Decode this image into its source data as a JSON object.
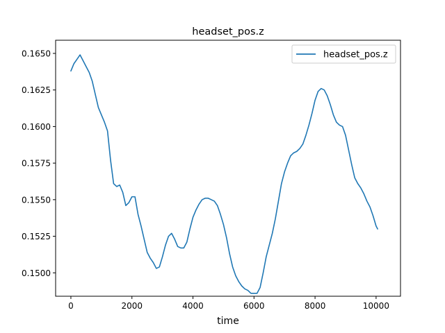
{
  "chart_data": {
    "type": "line",
    "title": "headset_pos.z",
    "xlabel": "time",
    "ylabel": "",
    "xlim": [
      -500,
      10800
    ],
    "ylim": [
      0.1484,
      0.1659
    ],
    "x_ticks": [
      0,
      2000,
      4000,
      6000,
      8000,
      10000
    ],
    "x_tick_labels": [
      "0",
      "2000",
      "4000",
      "6000",
      "8000",
      "10000"
    ],
    "y_ticks": [
      0.15,
      0.1525,
      0.155,
      0.1575,
      0.16,
      0.1625,
      0.165
    ],
    "y_tick_labels": [
      "0.1500",
      "0.1525",
      "0.1550",
      "0.1575",
      "0.1600",
      "0.1625",
      "0.1650"
    ],
    "grid": false,
    "legend": {
      "position": "top-right",
      "entries": [
        "headset_pos.z"
      ]
    },
    "series": [
      {
        "name": "headset_pos.z",
        "color": "#1f77b4",
        "points": [
          [
            0,
            0.1638
          ],
          [
            100,
            0.1643
          ],
          [
            200,
            0.1646
          ],
          [
            300,
            0.1649
          ],
          [
            400,
            0.1645
          ],
          [
            500,
            0.1641
          ],
          [
            600,
            0.1637
          ],
          [
            700,
            0.1631
          ],
          [
            800,
            0.1622
          ],
          [
            900,
            0.1613
          ],
          [
            1000,
            0.1608
          ],
          [
            1100,
            0.1603
          ],
          [
            1200,
            0.1597
          ],
          [
            1300,
            0.1577
          ],
          [
            1400,
            0.1561
          ],
          [
            1500,
            0.1559
          ],
          [
            1600,
            0.156
          ],
          [
            1700,
            0.1555
          ],
          [
            1800,
            0.1546
          ],
          [
            1900,
            0.1548
          ],
          [
            2000,
            0.1552
          ],
          [
            2100,
            0.1552
          ],
          [
            2200,
            0.154
          ],
          [
            2300,
            0.1532
          ],
          [
            2400,
            0.1523
          ],
          [
            2500,
            0.1514
          ],
          [
            2600,
            0.151
          ],
          [
            2700,
            0.1507
          ],
          [
            2800,
            0.1503
          ],
          [
            2900,
            0.1504
          ],
          [
            3000,
            0.1511
          ],
          [
            3100,
            0.1519
          ],
          [
            3200,
            0.1525
          ],
          [
            3300,
            0.1527
          ],
          [
            3400,
            0.1523
          ],
          [
            3500,
            0.1518
          ],
          [
            3600,
            0.1517
          ],
          [
            3700,
            0.1517
          ],
          [
            3800,
            0.1521
          ],
          [
            3900,
            0.153
          ],
          [
            4000,
            0.1538
          ],
          [
            4100,
            0.1543
          ],
          [
            4200,
            0.1547
          ],
          [
            4300,
            0.155
          ],
          [
            4400,
            0.1551
          ],
          [
            4500,
            0.1551
          ],
          [
            4600,
            0.155
          ],
          [
            4700,
            0.1549
          ],
          [
            4800,
            0.1546
          ],
          [
            4900,
            0.154
          ],
          [
            5000,
            0.1533
          ],
          [
            5100,
            0.1524
          ],
          [
            5200,
            0.1513
          ],
          [
            5300,
            0.1504
          ],
          [
            5400,
            0.1498
          ],
          [
            5500,
            0.1494
          ],
          [
            5600,
            0.1491
          ],
          [
            5700,
            0.1489
          ],
          [
            5800,
            0.1488
          ],
          [
            5900,
            0.1486
          ],
          [
            6000,
            0.1486
          ],
          [
            6100,
            0.1486
          ],
          [
            6200,
            0.149
          ],
          [
            6300,
            0.15
          ],
          [
            6400,
            0.1511
          ],
          [
            6500,
            0.1519
          ],
          [
            6600,
            0.1527
          ],
          [
            6700,
            0.1537
          ],
          [
            6800,
            0.1549
          ],
          [
            6900,
            0.1561
          ],
          [
            7000,
            0.1569
          ],
          [
            7100,
            0.1575
          ],
          [
            7200,
            0.158
          ],
          [
            7300,
            0.1582
          ],
          [
            7400,
            0.1583
          ],
          [
            7500,
            0.1585
          ],
          [
            7600,
            0.1588
          ],
          [
            7700,
            0.1594
          ],
          [
            7800,
            0.1601
          ],
          [
            7900,
            0.1609
          ],
          [
            8000,
            0.1618
          ],
          [
            8100,
            0.1624
          ],
          [
            8200,
            0.1626
          ],
          [
            8300,
            0.1625
          ],
          [
            8400,
            0.1621
          ],
          [
            8500,
            0.1615
          ],
          [
            8600,
            0.1608
          ],
          [
            8700,
            0.1603
          ],
          [
            8800,
            0.1601
          ],
          [
            8900,
            0.16
          ],
          [
            9000,
            0.1594
          ],
          [
            9100,
            0.1584
          ],
          [
            9200,
            0.1574
          ],
          [
            9300,
            0.1565
          ],
          [
            9400,
            0.1561
          ],
          [
            9500,
            0.1558
          ],
          [
            9600,
            0.1554
          ],
          [
            9700,
            0.1549
          ],
          [
            9800,
            0.1545
          ],
          [
            9900,
            0.1539
          ],
          [
            10000,
            0.1532
          ],
          [
            10050,
            0.153
          ]
        ]
      }
    ]
  }
}
